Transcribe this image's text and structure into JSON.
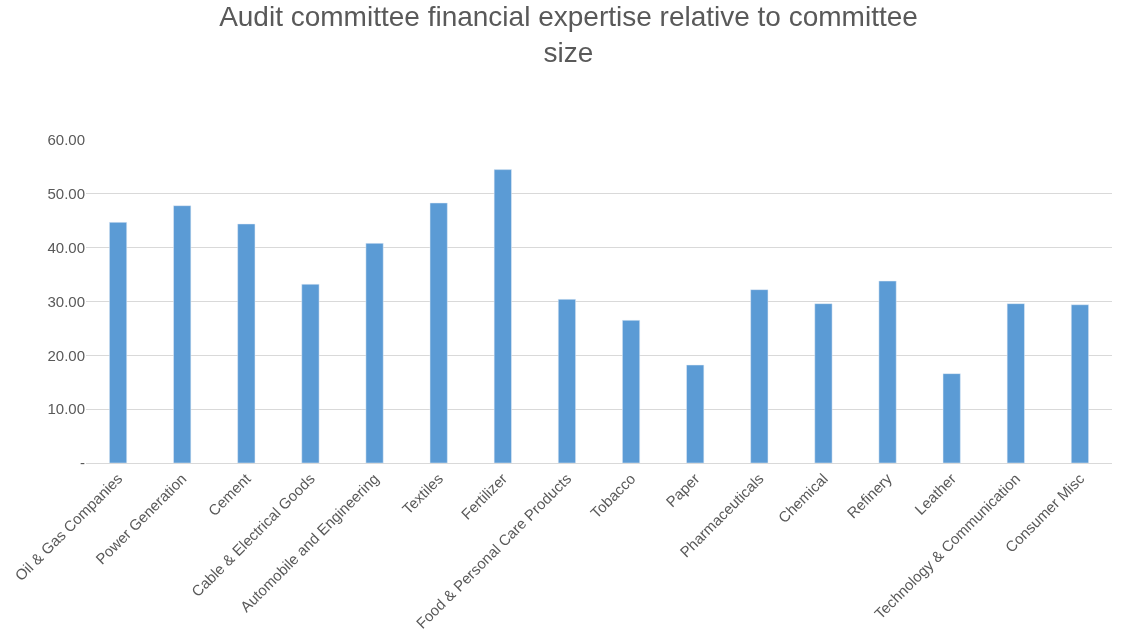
{
  "chart_data": {
    "type": "bar",
    "title": "Audit committee financial expertise relative to committee size",
    "categories": [
      "Oil & Gas Companies",
      "Power Generation",
      "Cement",
      "Cable & Electrical Goods",
      "Automobile and Engineering",
      "Textiles",
      "Fertilizer",
      "Food & Personal Care Products",
      "Tobacco",
      "Paper",
      "Pharmaceuticals",
      "Chemical",
      "Refinery",
      "Leather",
      "Technology & Communication",
      "Consumer Misc"
    ],
    "values": [
      44.7,
      47.8,
      44.4,
      33.2,
      40.8,
      48.3,
      54.5,
      30.4,
      26.5,
      18.2,
      32.2,
      29.6,
      33.8,
      16.6,
      29.6,
      29.4
    ],
    "color": "#5b9bd5",
    "ylim": [
      0,
      60
    ],
    "yticks": [
      {
        "value": 0,
        "label": "-"
      },
      {
        "value": 10,
        "label": "10.00"
      },
      {
        "value": 20,
        "label": "20.00"
      },
      {
        "value": 30,
        "label": "30.00"
      },
      {
        "value": 40,
        "label": "40.00"
      },
      {
        "value": 50,
        "label": "50.00"
      },
      {
        "value": 60,
        "label": "60.00"
      }
    ],
    "grid": "y"
  }
}
